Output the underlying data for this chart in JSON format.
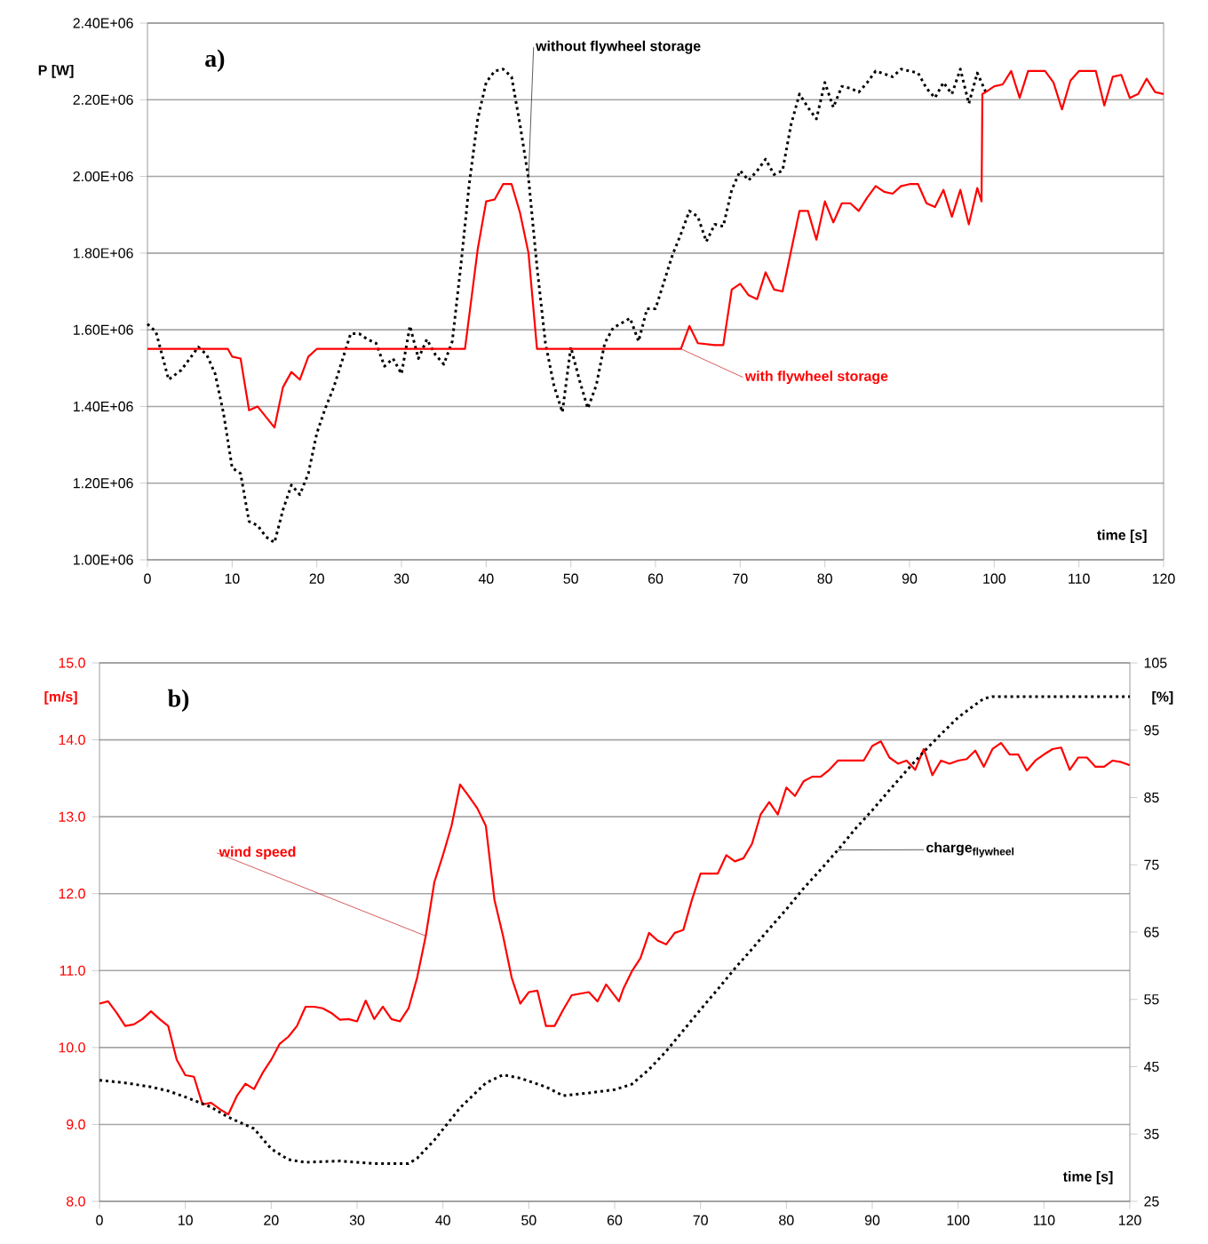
{
  "chart_data": [
    {
      "type": "line",
      "annotations": [
        "a)"
      ],
      "ylabel": "P [W]",
      "xlabel": "time [s]",
      "grid": "y",
      "xlim": [
        0,
        120
      ],
      "xticks": [
        0,
        10,
        20,
        30,
        40,
        50,
        60,
        70,
        80,
        90,
        100,
        110,
        120
      ],
      "ylim": [
        1000000,
        2400000
      ],
      "yticks": [
        {
          "value": 1000000,
          "label": "1.00E+06"
        },
        {
          "value": 1200000,
          "label": "1.20E+06"
        },
        {
          "value": 1400000,
          "label": "1.40E+06"
        },
        {
          "value": 1600000,
          "label": "1.60E+06"
        },
        {
          "value": 1800000,
          "label": "1.80E+06"
        },
        {
          "value": 2000000,
          "label": "2.00E+06"
        },
        {
          "value": 2200000,
          "label": "2.20E+06"
        },
        {
          "value": 2400000,
          "label": "2.40E+06"
        }
      ],
      "series": [
        {
          "name": "without flywheel storage",
          "color": "#000000",
          "line_style": "dotted",
          "x": [
            0,
            1,
            2.5,
            4,
            5,
            6,
            7,
            8,
            9,
            10,
            11,
            12,
            13,
            14,
            15,
            16,
            17,
            18,
            19,
            20,
            21,
            22,
            24,
            25,
            26,
            27,
            28,
            29,
            30,
            31,
            32,
            33,
            34,
            35,
            36,
            37,
            38,
            39,
            40,
            41,
            42,
            43,
            44,
            45,
            46,
            47,
            48,
            49,
            50,
            51,
            52,
            53,
            54,
            55,
            57,
            58,
            59,
            60,
            61,
            62,
            63,
            64,
            65,
            66,
            67,
            68,
            69,
            70,
            71,
            72,
            73,
            74,
            75,
            76,
            77,
            78,
            79,
            80,
            81,
            82,
            83,
            84,
            85,
            86,
            88,
            89,
            90,
            91,
            92,
            93,
            94,
            95,
            96,
            97,
            98,
            99
          ],
          "values": [
            1615000,
            1595000,
            1470000,
            1495000,
            1525000,
            1555000,
            1535000,
            1485000,
            1380000,
            1240000,
            1225000,
            1100000,
            1090000,
            1060000,
            1045000,
            1130000,
            1195000,
            1170000,
            1225000,
            1330000,
            1395000,
            1450000,
            1590000,
            1590000,
            1575000,
            1565000,
            1505000,
            1525000,
            1485000,
            1610000,
            1525000,
            1575000,
            1535000,
            1510000,
            1570000,
            1765000,
            1980000,
            2150000,
            2245000,
            2275000,
            2280000,
            2260000,
            2135000,
            1995000,
            1765000,
            1565000,
            1455000,
            1385000,
            1555000,
            1470000,
            1395000,
            1455000,
            1565000,
            1605000,
            1630000,
            1570000,
            1655000,
            1655000,
            1725000,
            1795000,
            1850000,
            1910000,
            1895000,
            1830000,
            1875000,
            1870000,
            1965000,
            2015000,
            1990000,
            2015000,
            2045000,
            2005000,
            2015000,
            2135000,
            2215000,
            2180000,
            2150000,
            2245000,
            2180000,
            2235000,
            2230000,
            2220000,
            2245000,
            2275000,
            2260000,
            2280000,
            2275000,
            2270000,
            2230000,
            2205000,
            2245000,
            2215000,
            2280000,
            2190000,
            2270000,
            2220000
          ]
        },
        {
          "name": "with flywheel storage",
          "color": "#ff0000",
          "line_style": "solid",
          "x": [
            0,
            9.5,
            10,
            11,
            12,
            13,
            15,
            16,
            17,
            18,
            19,
            20,
            37.5,
            39,
            40,
            41,
            42,
            43,
            44,
            45,
            46,
            63,
            64,
            65,
            67,
            68,
            69,
            70,
            71,
            72,
            73,
            74,
            75,
            76,
            77,
            78,
            79,
            80,
            81,
            82,
            83,
            84,
            85,
            86,
            87,
            88,
            89,
            90,
            91,
            92,
            93,
            94,
            95,
            96,
            97,
            98,
            98.5,
            98.6,
            99,
            100,
            101,
            102,
            103,
            104,
            106,
            107,
            108,
            109,
            110,
            112,
            113,
            114,
            115,
            116,
            117,
            118,
            119,
            120
          ],
          "values": [
            1550000,
            1550000,
            1530000,
            1525000,
            1390000,
            1400000,
            1345000,
            1450000,
            1490000,
            1470000,
            1530000,
            1550000,
            1550000,
            1810000,
            1935000,
            1940000,
            1980000,
            1980000,
            1905000,
            1800000,
            1550000,
            1550000,
            1610000,
            1565000,
            1560000,
            1560000,
            1705000,
            1720000,
            1690000,
            1680000,
            1750000,
            1705000,
            1700000,
            1805000,
            1910000,
            1910000,
            1835000,
            1935000,
            1880000,
            1930000,
            1930000,
            1910000,
            1945000,
            1975000,
            1960000,
            1955000,
            1975000,
            1980000,
            1980000,
            1930000,
            1920000,
            1965000,
            1895000,
            1965000,
            1875000,
            1970000,
            1935000,
            2215000,
            2220000,
            2235000,
            2240000,
            2275000,
            2205000,
            2275000,
            2275000,
            2245000,
            2175000,
            2250000,
            2275000,
            2275000,
            2185000,
            2260000,
            2265000,
            2205000,
            2215000,
            2255000,
            2220000,
            2215000
          ]
        }
      ]
    },
    {
      "type": "line",
      "annotations": [
        "b)"
      ],
      "ylabel": "[m/s]",
      "y2label": "[%]",
      "xlabel": "time [s]",
      "grid": "y",
      "xlim": [
        0,
        120
      ],
      "xticks": [
        0,
        10,
        20,
        30,
        40,
        50,
        60,
        70,
        80,
        90,
        100,
        110,
        120
      ],
      "ylim": [
        8,
        15
      ],
      "yticks": [
        {
          "value": 8,
          "label": "8.0"
        },
        {
          "value": 9,
          "label": "9.0"
        },
        {
          "value": 10,
          "label": "10.0"
        },
        {
          "value": 11,
          "label": "11.0"
        },
        {
          "value": 12,
          "label": "12.0"
        },
        {
          "value": 13,
          "label": "13.0"
        },
        {
          "value": 14,
          "label": "14.0"
        },
        {
          "value": 15,
          "label": "15.0"
        }
      ],
      "y2lim": [
        25,
        105
      ],
      "y2ticks": [
        25,
        35,
        45,
        55,
        65,
        75,
        85,
        95,
        105
      ],
      "series": [
        {
          "name": "wind speed",
          "color": "#ff0000",
          "line_style": "solid",
          "x": [
            0,
            1,
            2,
            3,
            4,
            5,
            6,
            7,
            8,
            9,
            10,
            11,
            12,
            13,
            14,
            15,
            16,
            17,
            18,
            19,
            20,
            21,
            22,
            23,
            24,
            25,
            26,
            27,
            28,
            29,
            30,
            31,
            32,
            33,
            34,
            35,
            36,
            37,
            38,
            39,
            40,
            41,
            42,
            43,
            44,
            45,
            46,
            47,
            48,
            49,
            50,
            51,
            52,
            53,
            54,
            55,
            56,
            57,
            58,
            59,
            60.5,
            61,
            62,
            63,
            64,
            65,
            66,
            67,
            68,
            69,
            70,
            71,
            72,
            73,
            74,
            75,
            76,
            77,
            78,
            79,
            80,
            81,
            82,
            83,
            84,
            85,
            86,
            88,
            89,
            90,
            91,
            92,
            93,
            94,
            95,
            96,
            97,
            98,
            99,
            100,
            101,
            102,
            103,
            104,
            105,
            106,
            107,
            108,
            109,
            110,
            111,
            112,
            113,
            114,
            115,
            116,
            117,
            118,
            119,
            120
          ],
          "values": [
            10.57,
            10.6,
            10.45,
            10.28,
            10.3,
            10.37,
            10.47,
            10.37,
            10.28,
            9.84,
            9.64,
            9.62,
            9.26,
            9.28,
            9.2,
            9.13,
            9.37,
            9.53,
            9.46,
            9.67,
            9.84,
            10.05,
            10.14,
            10.28,
            10.53,
            10.53,
            10.51,
            10.45,
            10.36,
            10.37,
            10.34,
            10.61,
            10.37,
            10.53,
            10.37,
            10.34,
            10.51,
            10.91,
            11.45,
            12.15,
            12.5,
            12.88,
            13.42,
            13.27,
            13.11,
            12.88,
            11.92,
            11.45,
            10.91,
            10.57,
            10.72,
            10.74,
            10.28,
            10.28,
            10.49,
            10.68,
            10.7,
            10.72,
            10.6,
            10.82,
            10.6,
            10.76,
            10.99,
            11.16,
            11.49,
            11.39,
            11.34,
            11.49,
            11.53,
            11.92,
            12.26,
            12.26,
            12.26,
            12.5,
            12.42,
            12.46,
            12.65,
            13.03,
            13.19,
            13.03,
            13.38,
            13.27,
            13.46,
            13.52,
            13.52,
            13.61,
            13.73,
            13.73,
            13.73,
            13.92,
            13.98,
            13.77,
            13.69,
            13.73,
            13.61,
            13.88,
            13.54,
            13.73,
            13.69,
            13.73,
            13.75,
            13.86,
            13.65,
            13.88,
            13.96,
            13.81,
            13.81,
            13.6,
            13.73,
            13.81,
            13.88,
            13.9,
            13.61,
            13.77,
            13.77,
            13.65,
            13.65,
            13.73,
            13.71,
            13.67
          ]
        },
        {
          "name": "charge$_{flywheel}$",
          "color": "#000000",
          "line_style": "dotted",
          "axis": "y2",
          "x": [
            0,
            3,
            6,
            8,
            10,
            13,
            15,
            18,
            20,
            22,
            24,
            28,
            32,
            36,
            37,
            39,
            42,
            45,
            47,
            49,
            52,
            54,
            57,
            60,
            62,
            64,
            66,
            68,
            70,
            72,
            74,
            76,
            78,
            80,
            82,
            84,
            86,
            88,
            90,
            92,
            94,
            96,
            98,
            100,
            102,
            103,
            104,
            120
          ],
          "values": [
            43,
            42.6,
            42,
            41.4,
            40.5,
            39,
            37.5,
            35.8,
            32.8,
            31.2,
            30.8,
            31,
            30.6,
            30.6,
            31.4,
            34.1,
            38.9,
            42.6,
            43.8,
            43.3,
            42,
            40.7,
            41.1,
            41.6,
            42.4,
            44.6,
            47.3,
            50.4,
            53.5,
            56.5,
            59.6,
            62.5,
            65.5,
            68.4,
            71.5,
            74.3,
            77.2,
            80.3,
            83.1,
            86.1,
            89,
            91.8,
            94.4,
            96.9,
            98.8,
            99.7,
            100,
            100
          ]
        }
      ]
    }
  ]
}
